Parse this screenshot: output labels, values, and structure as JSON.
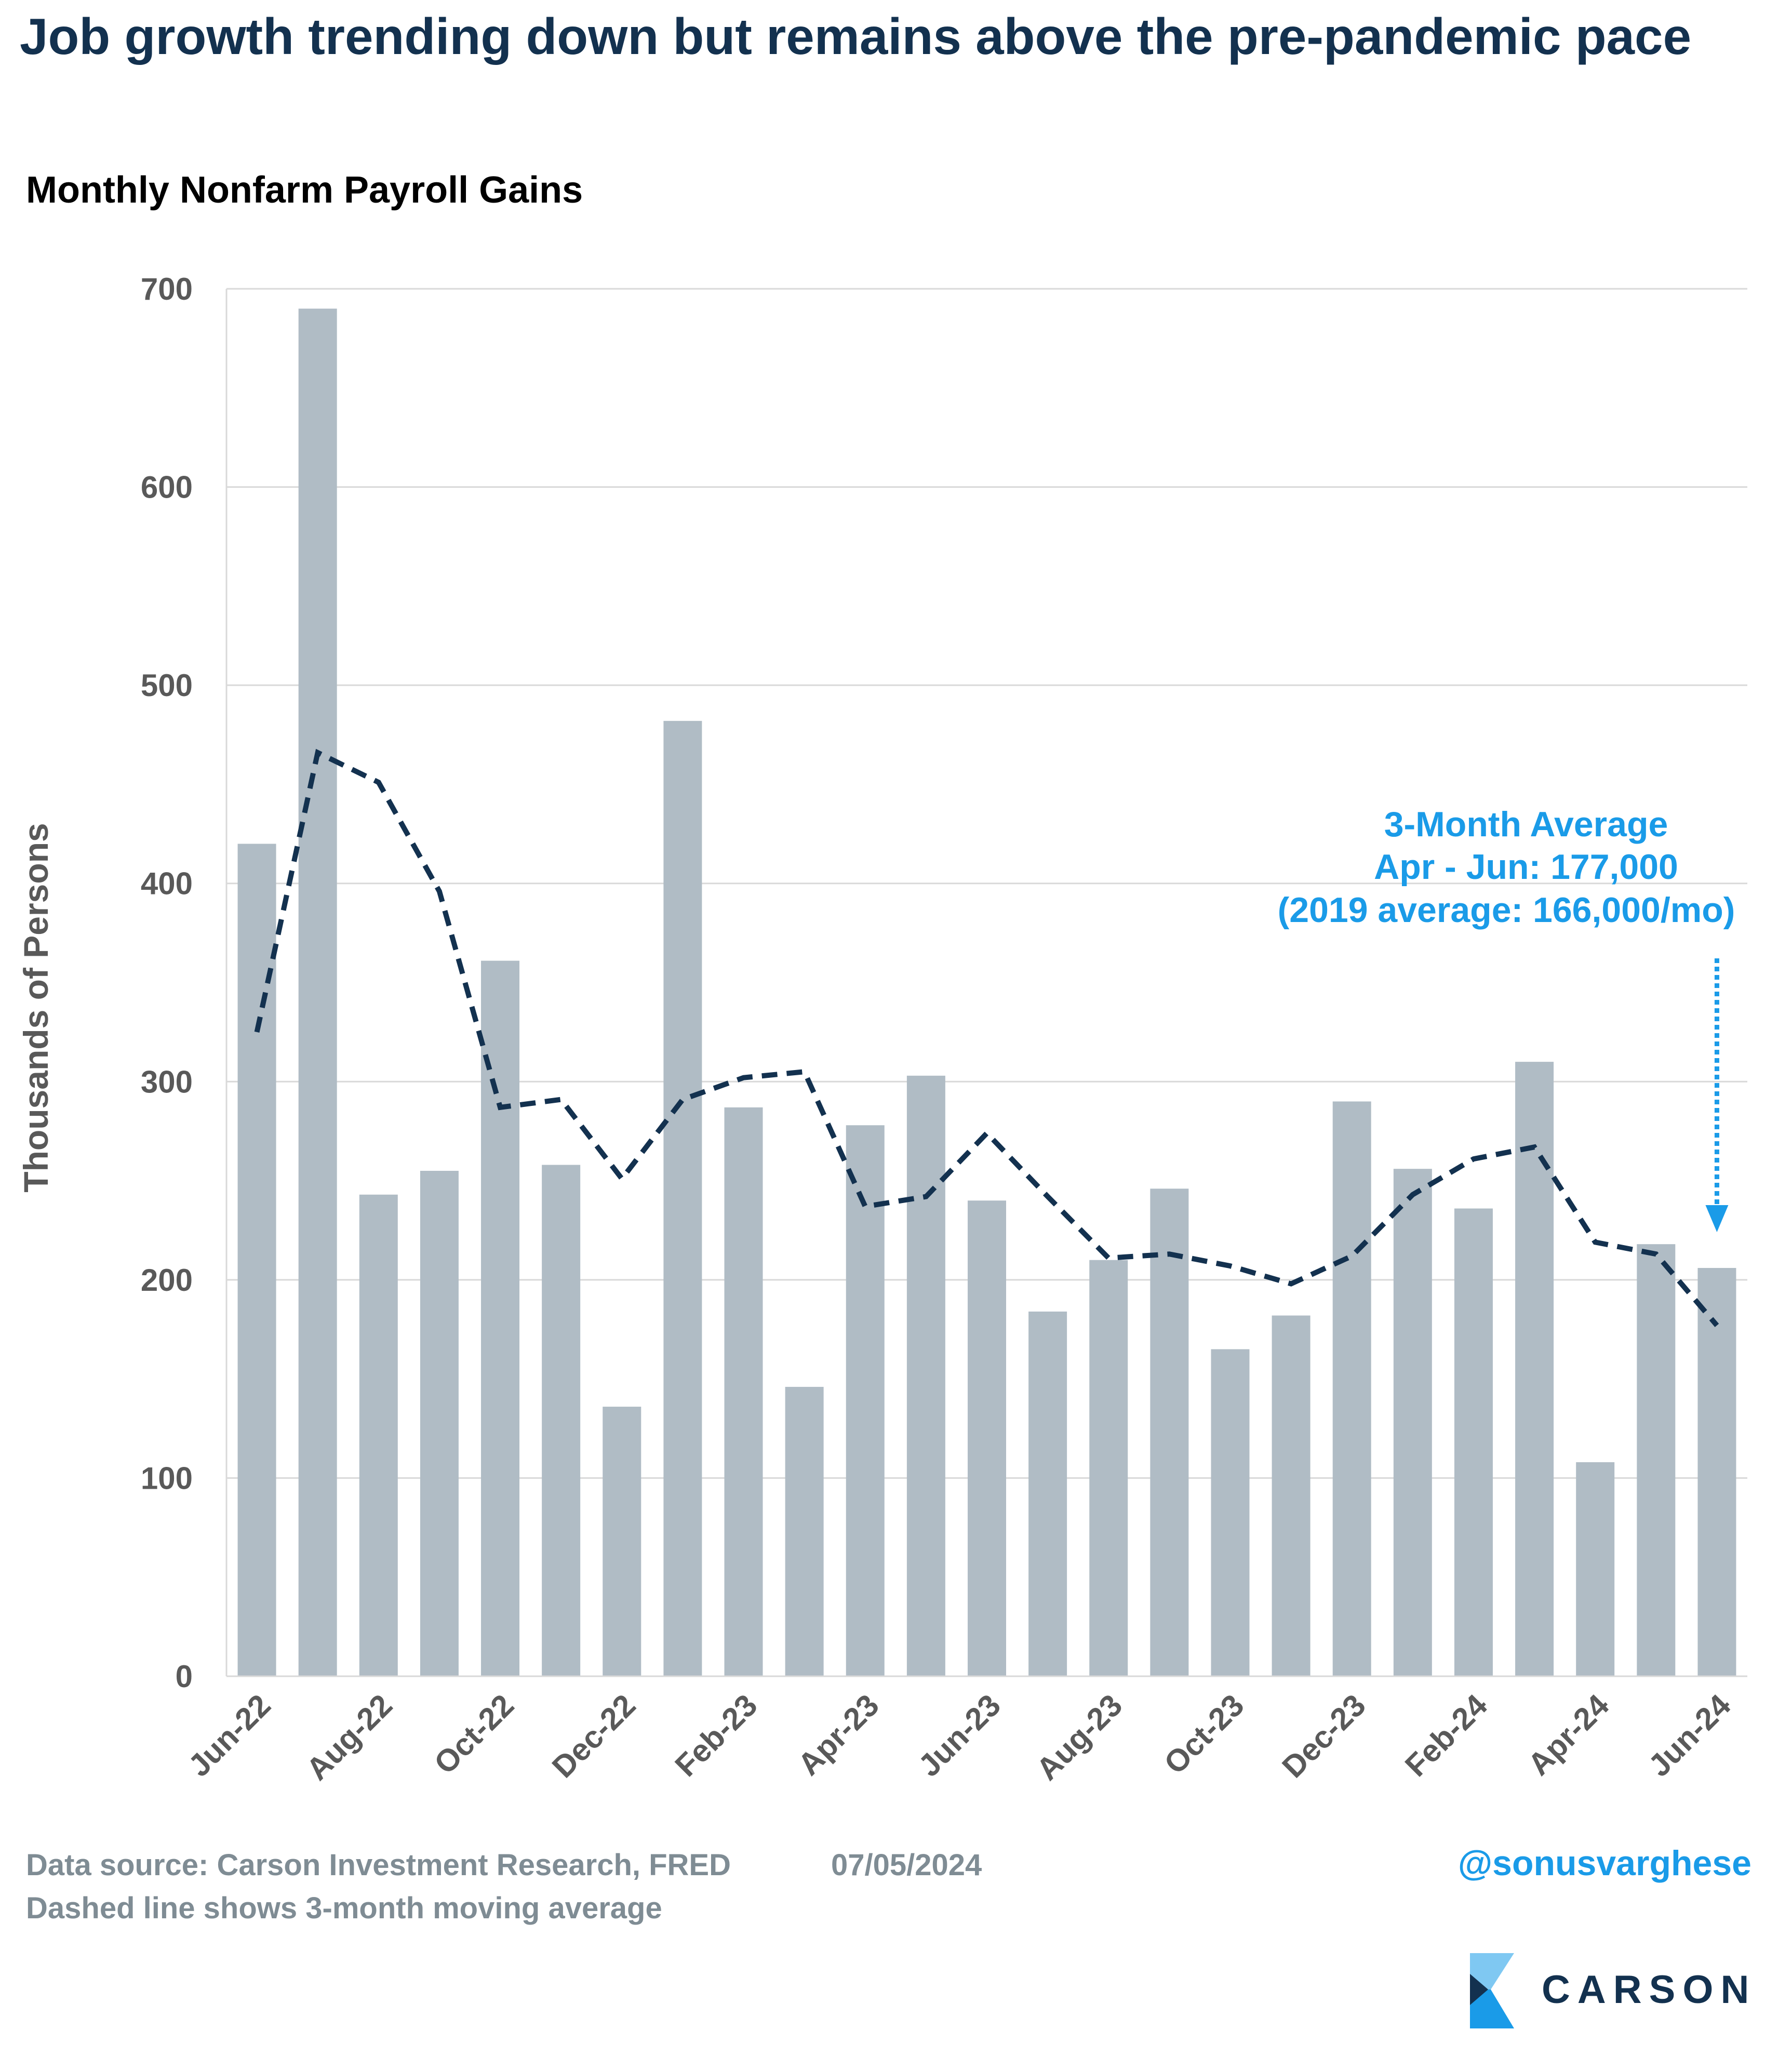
{
  "title": "Job growth trending down but remains above the pre-pandemic pace",
  "chart_data": {
    "type": "bar",
    "subtitle": "Monthly Nonfarm Payroll Gains",
    "y_label": "Thousands of Persons",
    "categories": [
      "Jun-22",
      null,
      "Aug-22",
      null,
      "Oct-22",
      null,
      "Dec-22",
      null,
      "Feb-23",
      null,
      "Apr-23",
      null,
      "Jun-23",
      null,
      "Aug-23",
      null,
      "Oct-23",
      null,
      "Dec-23",
      null,
      "Feb-24",
      null,
      "Apr-24",
      null,
      "Jun-24"
    ],
    "series": [
      {
        "type": "bar",
        "color": "#b0bcc5",
        "values": [
          420,
          690,
          243,
          255,
          361,
          258,
          136,
          482,
          287,
          146,
          278,
          303,
          240,
          184,
          210,
          246,
          165,
          182,
          290,
          256,
          236,
          310,
          108,
          218,
          206
        ]
      },
      {
        "type": "line",
        "color": "#13314f",
        "dashed": true,
        "values": [
          325,
          466,
          451,
          396,
          287,
          291,
          251,
          291,
          302,
          305,
          237,
          242,
          274,
          242,
          211,
          213,
          207,
          198,
          212,
          243,
          261,
          267,
          219,
          213,
          177
        ]
      }
    ],
    "ylim": [
      0,
      700
    ],
    "yticks": [
      0,
      100,
      200,
      300,
      400,
      500,
      600,
      700
    ],
    "grid": true,
    "annotation": [
      "3-Month Average",
      "Apr - Jun: 177,000",
      "(2019 average: 166,000/mo)"
    ],
    "annotation_color": "#1a9be8"
  },
  "footer": {
    "source": "Data source: Carson Investment Research, FRED",
    "date": "07/05/2024",
    "note": "Dashed line shows 3-month moving average",
    "handle": "@sonusvarghese",
    "logo": "CARSON"
  }
}
